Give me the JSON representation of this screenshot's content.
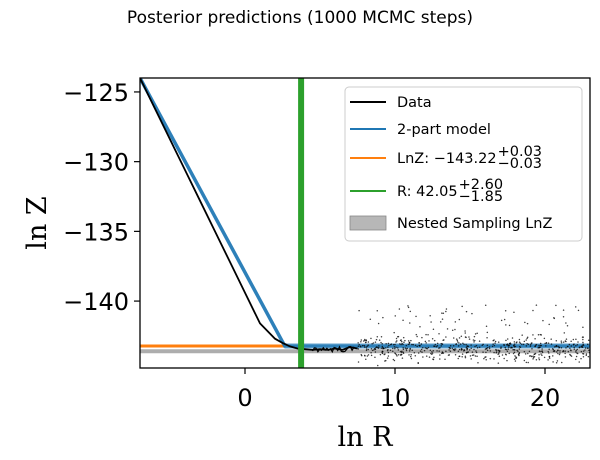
{
  "chart_data": {
    "type": "line",
    "title": "Posterior predictions (1000 MCMC steps)",
    "xlabel": "ln R",
    "ylabel": "ln Z",
    "xlim": [
      -7,
      23
    ],
    "ylim": [
      -144.8,
      -124
    ],
    "xticks": [
      0,
      10,
      20
    ],
    "xtick_labels": [
      "0",
      "10",
      "20"
    ],
    "yticks": [
      -125,
      -130,
      -135,
      -140
    ],
    "ytick_labels": [
      "−125",
      "−130",
      "−135",
      "−140"
    ],
    "grid": false,
    "legend_position": "top-right",
    "colors": {
      "data": "#000000",
      "model": "#1f77b4",
      "lnz": "#ff7f0e",
      "r": "#2ca02c",
      "nested": "#999999"
    },
    "series": [
      {
        "name": "Data",
        "x": [
          -7,
          -6,
          -5,
          -4,
          -3,
          -2,
          -1,
          0,
          1,
          2,
          2.5,
          3,
          3.5,
          4,
          4.5,
          5,
          5.5,
          6,
          6.5,
          7,
          7.5
        ],
        "y": [
          -124,
          -126.2,
          -128.4,
          -130.6,
          -132.8,
          -135.0,
          -137.2,
          -139.4,
          -141.6,
          -142.7,
          -143.0,
          -143.25,
          -143.4,
          -143.45,
          -143.5,
          -143.45,
          -143.5,
          -143.4,
          -143.5,
          -143.3,
          -143.4
        ]
      },
      {
        "name": "2-part model",
        "x": [
          -7,
          2.65,
          23
        ],
        "y": [
          -124.0,
          -143.22,
          -143.22
        ]
      },
      {
        "name": "LnZ: −143.22",
        "value": -143.22,
        "sup": "+0.03",
        "sub": "−0.03",
        "x_range": [
          -7,
          2.7
        ]
      },
      {
        "name": "R: 42.05",
        "value_lnR": 3.74,
        "sup": "+2.60",
        "sub": "−1.85"
      },
      {
        "name": "Nested Sampling LnZ",
        "value": -143.6
      }
    ],
    "legend": [
      {
        "key": "data",
        "label": "Data"
      },
      {
        "key": "model",
        "label": "2-part model"
      },
      {
        "key": "lnz",
        "label": "LnZ: −143.22",
        "sup": "+0.03",
        "sub": "−0.03"
      },
      {
        "key": "r",
        "label": "R: 42.05",
        "sup": "+2.60",
        "sub": "−1.85"
      },
      {
        "key": "nested",
        "label": "Nested Sampling LnZ"
      }
    ],
    "scatter": {
      "name": "noisy points",
      "x_range": [
        7.5,
        23
      ],
      "baseline": -143.45
    }
  }
}
